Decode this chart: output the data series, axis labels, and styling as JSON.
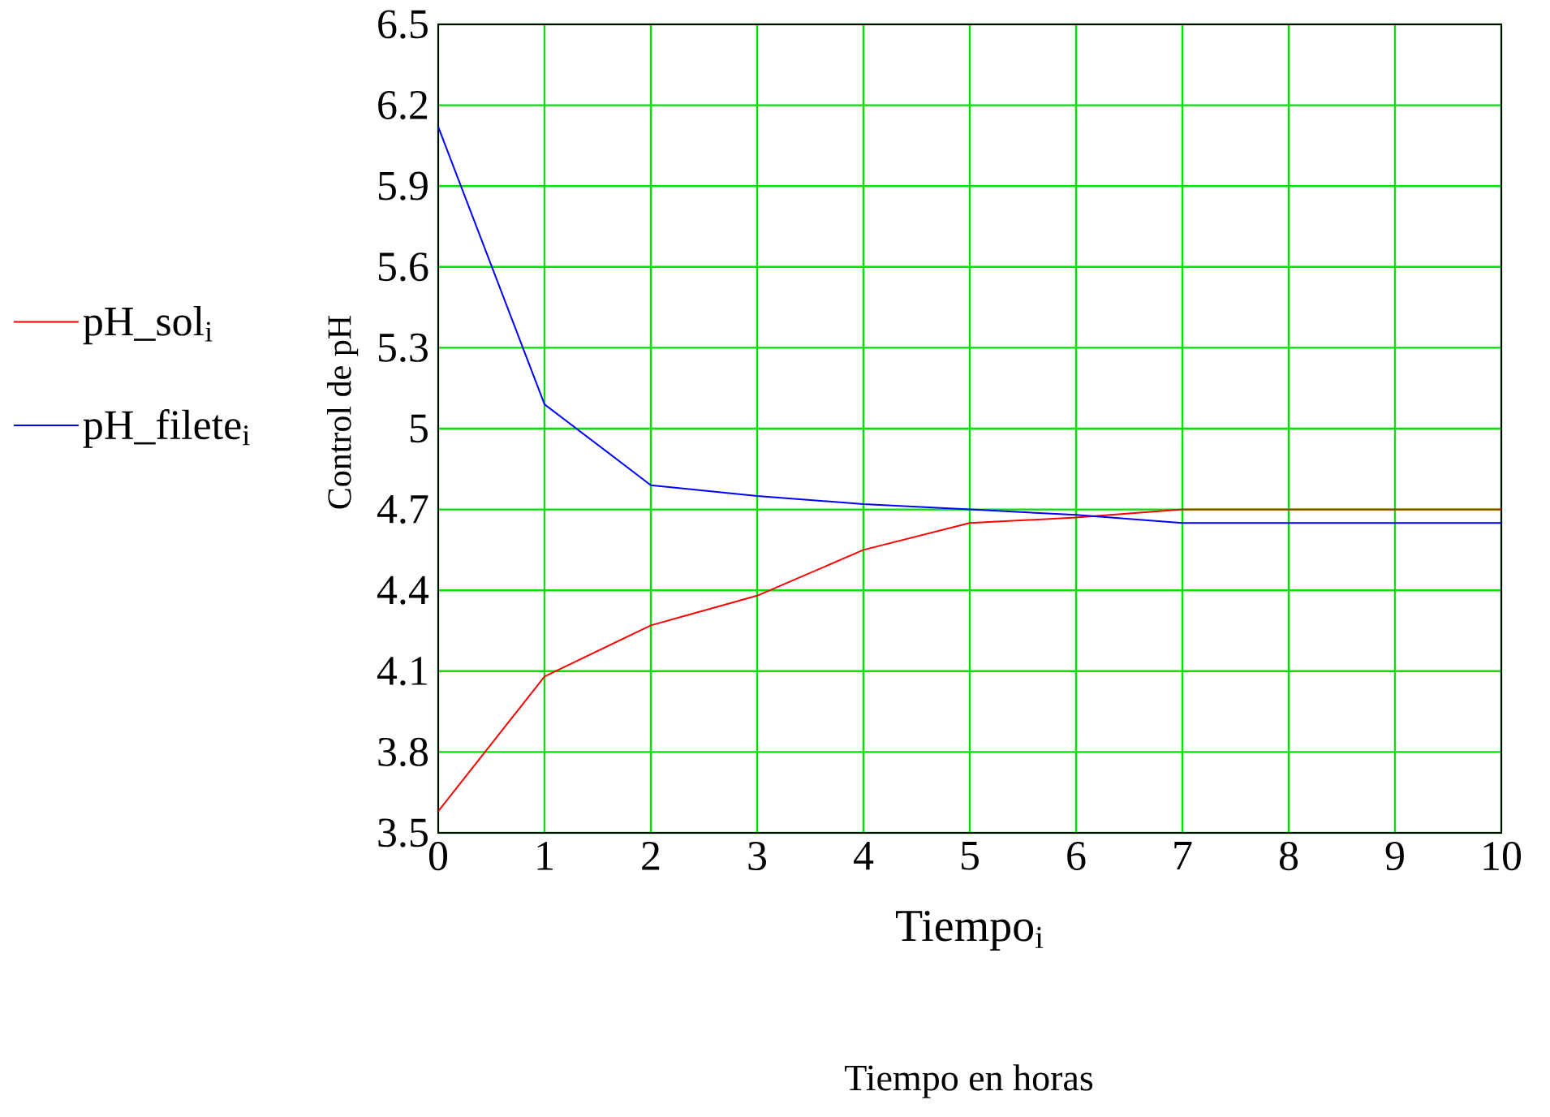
{
  "chart_data": {
    "type": "line",
    "xlabel": "Tiempo$_{i}$",
    "ylabel": "Control de pH",
    "annotations": [
      "Tiempo en horas"
    ],
    "x": [
      0,
      1,
      2,
      3,
      4,
      5,
      6,
      7,
      8,
      9,
      10
    ],
    "series": [
      {
        "name": "pH_sol$_{i}$",
        "color": "#ff0000",
        "values": [
          3.58,
          4.08,
          4.27,
          4.38,
          4.55,
          4.65,
          4.67,
          4.7,
          4.7,
          4.7,
          4.7
        ]
      },
      {
        "name": "pH_filete$_{i}$",
        "color": "#0000ff",
        "values": [
          6.12,
          5.09,
          4.79,
          4.75,
          4.72,
          4.7,
          4.68,
          4.65,
          4.65,
          4.65,
          4.65
        ]
      }
    ],
    "xlim": [
      0,
      10
    ],
    "ylim": [
      3.5,
      6.5
    ],
    "xticks": [
      0,
      1,
      2,
      3,
      4,
      5,
      6,
      7,
      8,
      9,
      10
    ],
    "yticks": [
      3.5,
      3.8,
      4.1,
      4.4,
      4.7,
      5,
      5.3,
      5.6,
      5.9,
      6.2,
      6.5
    ],
    "grid": true,
    "legend": "left",
    "marker": "none",
    "line_style": "solid"
  }
}
